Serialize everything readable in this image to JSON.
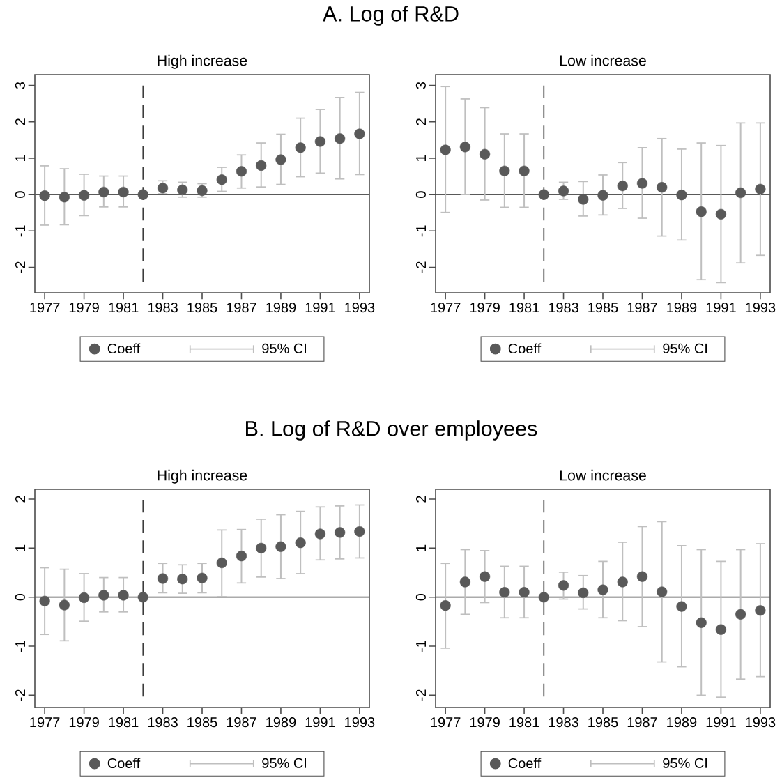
{
  "chart_data": [
    {
      "type": "scatter",
      "title": "A. Log of R&D",
      "subtitle": "High increase",
      "x": [
        1977,
        1978,
        1979,
        1980,
        1981,
        1982,
        1983,
        1984,
        1985,
        1986,
        1987,
        1988,
        1989,
        1990,
        1991,
        1992,
        1993
      ],
      "series": [
        {
          "name": "Coeff",
          "color": "#595959",
          "values": [
            -0.03,
            -0.07,
            -0.02,
            0.07,
            0.07,
            0,
            0.18,
            0.13,
            0.11,
            0.41,
            0.64,
            0.8,
            0.96,
            1.29,
            1.46,
            1.54,
            1.67
          ],
          "errors": [
            [
              -0.84,
              0.79
            ],
            [
              -0.83,
              0.71
            ],
            [
              -0.58,
              0.56
            ],
            [
              -0.34,
              0.51
            ],
            [
              -0.34,
              0.51
            ],
            null,
            [
              0.02,
              0.38
            ],
            [
              -0.07,
              0.34
            ],
            [
              -0.07,
              0.3
            ],
            [
              0.09,
              0.75
            ],
            [
              0.18,
              1.09
            ],
            [
              0.21,
              1.42
            ],
            [
              0.28,
              1.66
            ],
            [
              0.49,
              2.1
            ],
            [
              0.59,
              2.34
            ],
            [
              0.43,
              2.67
            ],
            [
              0.55,
              2.81
            ]
          ]
        }
      ],
      "annotations": [
        "95% CI"
      ],
      "xlim": [
        1976.5,
        1993.5
      ],
      "ylim": [
        -2.7,
        3.3
      ],
      "xticks": [
        1977,
        1979,
        1981,
        1983,
        1985,
        1987,
        1989,
        1991,
        1993
      ],
      "yticks": [
        -2,
        -1,
        0,
        1,
        2,
        3
      ],
      "ref_lines": [
        {
          "axis": "y",
          "value": 0,
          "color": "#595959",
          "line_style": "solid"
        },
        {
          "axis": "x",
          "value": 1982,
          "color": "#3c3c3c",
          "line_style": "dashed"
        }
      ],
      "legend": "bottom"
    },
    {
      "type": "scatter",
      "subtitle": "Low increase",
      "x": [
        1977,
        1978,
        1979,
        1980,
        1981,
        1982,
        1983,
        1984,
        1985,
        1986,
        1987,
        1988,
        1989,
        1990,
        1991,
        1992,
        1993
      ],
      "series": [
        {
          "name": "Coeff",
          "color": "#595959",
          "values": [
            1.23,
            1.31,
            1.11,
            0.65,
            0.65,
            0,
            0.1,
            -0.13,
            -0.02,
            0.24,
            0.31,
            0.2,
            -0.01,
            -0.47,
            -0.54,
            0.05,
            0.15
          ],
          "errors": [
            [
              -0.49,
              2.97
            ],
            [
              0.0,
              2.63
            ],
            [
              -0.15,
              2.39
            ],
            [
              -0.35,
              1.67
            ],
            [
              -0.35,
              1.67
            ],
            null,
            [
              -0.13,
              0.34
            ],
            [
              -0.59,
              0.36
            ],
            [
              -0.56,
              0.54
            ],
            [
              -0.38,
              0.88
            ],
            [
              -0.65,
              1.29
            ],
            [
              -1.14,
              1.54
            ],
            [
              -1.25,
              1.25
            ],
            [
              -2.34,
              1.42
            ],
            [
              -2.42,
              1.35
            ],
            [
              -1.88,
              1.97
            ],
            [
              -1.67,
              1.97
            ]
          ]
        }
      ],
      "annotations": [
        "95% CI"
      ],
      "xlim": [
        1976.5,
        1993.5
      ],
      "ylim": [
        -2.7,
        3.3
      ],
      "xticks": [
        1977,
        1979,
        1981,
        1983,
        1985,
        1987,
        1989,
        1991,
        1993
      ],
      "yticks": [
        -2,
        -1,
        0,
        1,
        2,
        3
      ],
      "ref_lines": [
        {
          "axis": "y",
          "value": 0,
          "color": "#595959",
          "line_style": "solid"
        },
        {
          "axis": "x",
          "value": 1982,
          "color": "#3c3c3c",
          "line_style": "dashed"
        }
      ],
      "legend": "bottom"
    },
    {
      "type": "scatter",
      "title": "B. Log of R&D over employees",
      "subtitle": "High increase",
      "x": [
        1977,
        1978,
        1979,
        1980,
        1981,
        1982,
        1983,
        1984,
        1985,
        1986,
        1987,
        1988,
        1989,
        1990,
        1991,
        1992,
        1993
      ],
      "series": [
        {
          "name": "Coeff",
          "color": "#595959",
          "values": [
            -0.08,
            -0.16,
            -0.01,
            0.04,
            0.04,
            0,
            0.38,
            0.37,
            0.39,
            0.7,
            0.84,
            1.0,
            1.03,
            1.11,
            1.29,
            1.32,
            1.34
          ],
          "errors": [
            [
              -0.76,
              0.6
            ],
            [
              -0.89,
              0.57
            ],
            [
              -0.49,
              0.48
            ],
            [
              -0.3,
              0.4
            ],
            [
              -0.3,
              0.4
            ],
            null,
            [
              0.09,
              0.69
            ],
            [
              0.08,
              0.66
            ],
            [
              0.09,
              0.69
            ],
            [
              0.01,
              1.37
            ],
            [
              0.29,
              1.38
            ],
            [
              0.41,
              1.59
            ],
            [
              0.38,
              1.68
            ],
            [
              0.48,
              1.75
            ],
            [
              0.76,
              1.84
            ],
            [
              0.78,
              1.86
            ],
            [
              0.8,
              1.88
            ]
          ]
        }
      ],
      "annotations": [
        "95% CI"
      ],
      "xlim": [
        1976.5,
        1993.5
      ],
      "ylim": [
        -2.25,
        2.2
      ],
      "xticks": [
        1977,
        1979,
        1981,
        1983,
        1985,
        1987,
        1989,
        1991,
        1993
      ],
      "yticks": [
        -2,
        -1,
        0,
        1,
        2
      ],
      "ref_lines": [
        {
          "axis": "y",
          "value": 0,
          "color": "#595959",
          "line_style": "solid"
        },
        {
          "axis": "x",
          "value": 1982,
          "color": "#3c3c3c",
          "line_style": "dashed"
        }
      ],
      "legend": "bottom"
    },
    {
      "type": "scatter",
      "subtitle": "Low increase",
      "x": [
        1977,
        1978,
        1979,
        1980,
        1981,
        1982,
        1983,
        1984,
        1985,
        1986,
        1987,
        1988,
        1989,
        1990,
        1991,
        1992,
        1993
      ],
      "series": [
        {
          "name": "Coeff",
          "color": "#595959",
          "values": [
            -0.17,
            0.31,
            0.42,
            0.1,
            0.1,
            0,
            0.24,
            0.09,
            0.15,
            0.31,
            0.42,
            0.11,
            -0.19,
            -0.52,
            -0.66,
            -0.35,
            -0.27
          ],
          "errors": [
            [
              -1.04,
              0.69
            ],
            [
              -0.35,
              0.97
            ],
            [
              -0.11,
              0.95
            ],
            [
              -0.42,
              0.63
            ],
            [
              -0.42,
              0.63
            ],
            null,
            [
              -0.04,
              0.51
            ],
            [
              -0.24,
              0.44
            ],
            [
              -0.42,
              0.73
            ],
            [
              -0.48,
              1.12
            ],
            [
              -0.6,
              1.44
            ],
            [
              -1.32,
              1.54
            ],
            [
              -1.42,
              1.05
            ],
            [
              -2.0,
              0.97
            ],
            [
              -2.04,
              0.73
            ],
            [
              -1.67,
              0.97
            ],
            [
              -1.62,
              1.09
            ]
          ]
        }
      ],
      "annotations": [
        "95% CI"
      ],
      "xlim": [
        1976.5,
        1993.5
      ],
      "ylim": [
        -2.25,
        2.2
      ],
      "xticks": [
        1977,
        1979,
        1981,
        1983,
        1985,
        1987,
        1989,
        1991,
        1993
      ],
      "yticks": [
        -2,
        -1,
        0,
        1,
        2
      ],
      "ref_lines": [
        {
          "axis": "y",
          "value": 0,
          "color": "#595959",
          "line_style": "solid"
        },
        {
          "axis": "x",
          "value": 1982,
          "color": "#3c3c3c",
          "line_style": "dashed"
        }
      ],
      "legend": "bottom"
    }
  ]
}
